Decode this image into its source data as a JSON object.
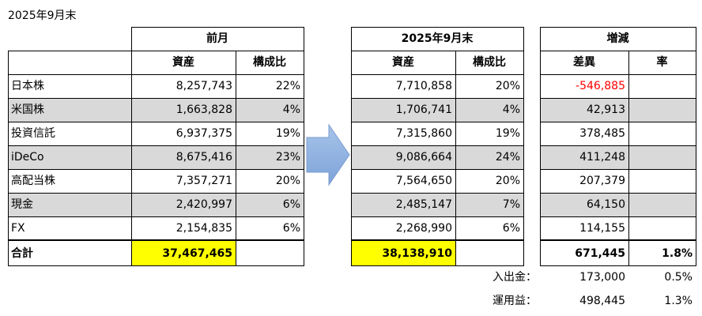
{
  "page_title": "2025年9月末",
  "headers": {
    "prev_month": "前月",
    "current": "2025年9月末",
    "change": "増減",
    "assets": "資産",
    "ratio": "構成比",
    "diff": "差異",
    "rate": "率"
  },
  "rows": [
    {
      "name": "日本株",
      "prev_asset": "8,257,743",
      "prev_ratio": "22%",
      "cur_asset": "7,710,858",
      "cur_ratio": "20%",
      "diff": "-546,885",
      "rate": ""
    },
    {
      "name": "米国株",
      "prev_asset": "1,663,828",
      "prev_ratio": "4%",
      "cur_asset": "1,706,741",
      "cur_ratio": "4%",
      "diff": "42,913",
      "rate": ""
    },
    {
      "name": "投資信託",
      "prev_asset": "6,937,375",
      "prev_ratio": "19%",
      "cur_asset": "7,315,860",
      "cur_ratio": "19%",
      "diff": "378,485",
      "rate": ""
    },
    {
      "name": "iDeCo",
      "prev_asset": "8,675,416",
      "prev_ratio": "23%",
      "cur_asset": "9,086,664",
      "cur_ratio": "24%",
      "diff": "411,248",
      "rate": ""
    },
    {
      "name": "高配当株",
      "prev_asset": "7,357,271",
      "prev_ratio": "20%",
      "cur_asset": "7,564,650",
      "cur_ratio": "20%",
      "diff": "207,379",
      "rate": ""
    },
    {
      "name": "現金",
      "prev_asset": "2,420,997",
      "prev_ratio": "6%",
      "cur_asset": "2,485,147",
      "cur_ratio": "7%",
      "diff": "64,150",
      "rate": ""
    },
    {
      "name": "FX",
      "prev_asset": "2,154,835",
      "prev_ratio": "6%",
      "cur_asset": "2,268,990",
      "cur_ratio": "6%",
      "diff": "114,155",
      "rate": ""
    }
  ],
  "total": {
    "label": "合計",
    "prev_asset": "37,467,465",
    "cur_asset": "38,138,910",
    "diff": "671,445",
    "rate": "1.8%"
  },
  "breakdown": [
    {
      "label": "入出金：",
      "value": "173,000",
      "rate": "0.5%"
    },
    {
      "label": "運用益：",
      "value": "498,445",
      "rate": "1.3%"
    }
  ],
  "colors": {
    "highlight": "#ffff00",
    "band": "#d9d9d9",
    "negative": "#ff0000",
    "arrow": "#8eb4e3"
  }
}
